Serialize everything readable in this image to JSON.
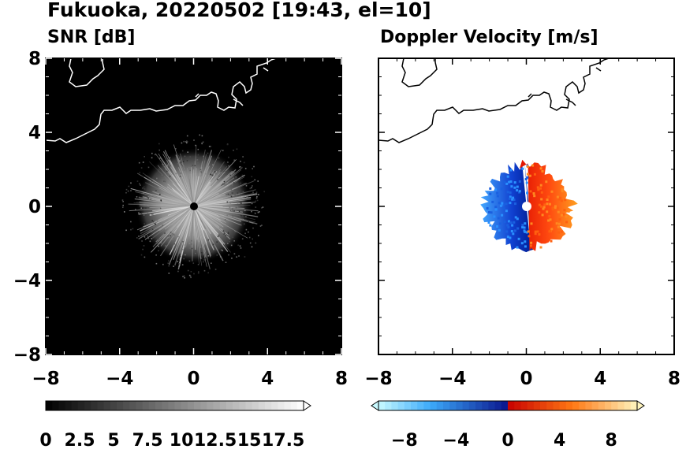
{
  "header": {
    "title": "Fukuoka, 20220502 [19:43, el=10]"
  },
  "chart_data": [
    {
      "type": "heatmap",
      "title": "SNR [dB]",
      "xlim": [
        -8,
        8
      ],
      "ylim": [
        -8,
        8
      ],
      "x_ticks": [
        "−8",
        "−4",
        "0",
        "4",
        "8"
      ],
      "y_ticks": [
        "8",
        "4",
        "0",
        "−4",
        "−8"
      ],
      "background": "#000000",
      "radar_site": [
        0,
        0
      ],
      "echo_radius_km": 3,
      "colorbar": {
        "labels": [
          "0",
          "2.5",
          "5",
          "7.5",
          "10",
          "12.5",
          "15",
          "17.5"
        ],
        "range": [
          0,
          19
        ],
        "extend": "max",
        "colors": [
          "#000000",
          "#ffffff"
        ]
      }
    },
    {
      "type": "heatmap",
      "title": "Doppler Velocity [m/s]",
      "xlim": [
        -8,
        8
      ],
      "ylim": [
        -8,
        8
      ],
      "x_ticks": [
        "−8",
        "−4",
        "0",
        "4",
        "8"
      ],
      "background": "#ffffff",
      "radar_site": [
        0,
        0
      ],
      "echo_radius_km": 2.2,
      "colorbar": {
        "labels": [
          "−8",
          "−4",
          "0",
          "4",
          "8"
        ],
        "range": [
          -10,
          10
        ],
        "extend": "both",
        "colors": [
          "#e8feff",
          "#0020a0",
          "#d80000",
          "#fffac0"
        ]
      }
    }
  ]
}
